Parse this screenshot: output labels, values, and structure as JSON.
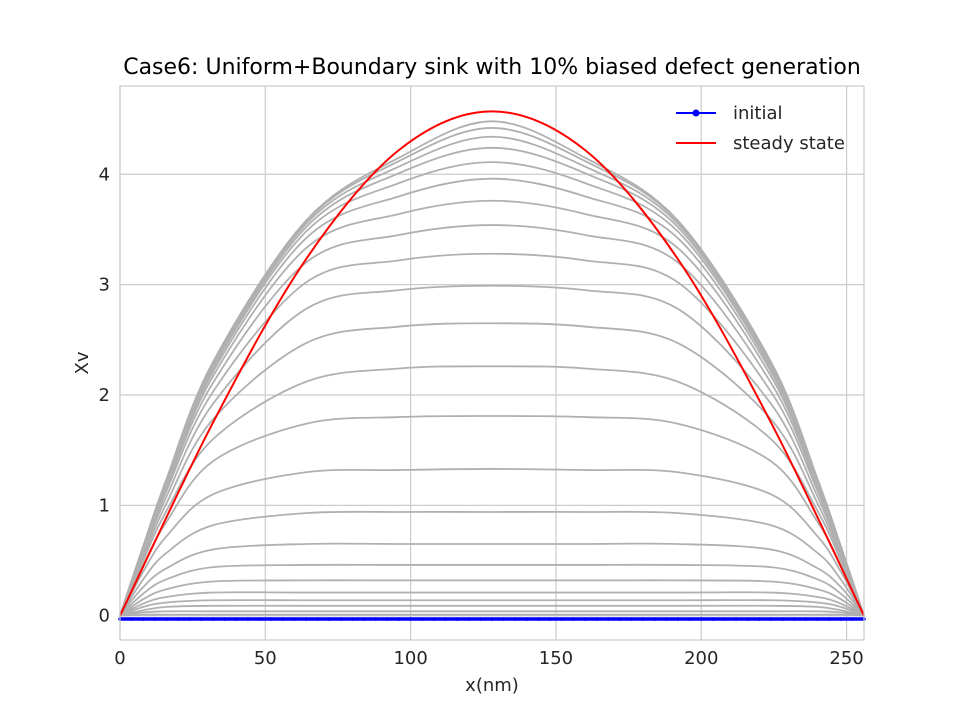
{
  "chart_data": {
    "type": "line",
    "title": "Case6: Uniform+Boundary sink with 10% biased defect generation",
    "xlabel": "x(nm)",
    "ylabel": "Xv",
    "xlim": [
      0,
      256
    ],
    "ylim": [
      -0.22,
      4.8
    ],
    "xticks": [
      0,
      50,
      100,
      150,
      200,
      250
    ],
    "yticks": [
      0,
      1,
      2,
      3,
      4
    ],
    "grid": true,
    "legend_position": "top-right",
    "colors": {
      "initial": "#0000ff",
      "steady": "#ff0000",
      "intermediate": "#b0b0b0",
      "grid": "#cccccc",
      "frame": "#cccccc"
    },
    "series": [
      {
        "name": "initial",
        "color": "#0000ff",
        "marker": "circle",
        "x": [
          0,
          256
        ],
        "y": [
          -0.03,
          -0.03
        ]
      },
      {
        "name": "steady state",
        "color": "#ff0000",
        "x": [
          0,
          32,
          64,
          96,
          128,
          160,
          192,
          224,
          256
        ],
        "y": [
          0.0,
          1.75,
          3.23,
          4.22,
          4.57,
          4.22,
          3.23,
          1.75,
          0.0
        ]
      }
    ],
    "intermediate_series": {
      "color": "#b0b0b0",
      "x": [
        0,
        8,
        16,
        32,
        64,
        96,
        128,
        160,
        192,
        224,
        240,
        248,
        256
      ],
      "curves": [
        [
          0.0,
          0.01,
          0.01,
          0.01,
          0.01,
          0.01,
          0.01,
          0.01,
          0.01,
          0.01,
          0.01,
          0.01,
          0.0
        ],
        [
          0.0,
          0.03,
          0.04,
          0.04,
          0.04,
          0.04,
          0.04,
          0.04,
          0.04,
          0.04,
          0.04,
          0.03,
          0.0
        ],
        [
          0.0,
          0.05,
          0.08,
          0.09,
          0.09,
          0.09,
          0.09,
          0.09,
          0.09,
          0.09,
          0.08,
          0.05,
          0.0
        ],
        [
          0.0,
          0.08,
          0.12,
          0.14,
          0.14,
          0.14,
          0.14,
          0.14,
          0.14,
          0.14,
          0.12,
          0.08,
          0.0
        ],
        [
          0.0,
          0.11,
          0.17,
          0.21,
          0.21,
          0.21,
          0.21,
          0.21,
          0.21,
          0.21,
          0.17,
          0.11,
          0.0
        ],
        [
          0.0,
          0.15,
          0.24,
          0.31,
          0.32,
          0.32,
          0.32,
          0.32,
          0.32,
          0.31,
          0.24,
          0.15,
          0.0
        ],
        [
          0.0,
          0.2,
          0.33,
          0.44,
          0.46,
          0.46,
          0.46,
          0.46,
          0.46,
          0.44,
          0.33,
          0.2,
          0.0
        ],
        [
          0.0,
          0.26,
          0.43,
          0.6,
          0.65,
          0.65,
          0.65,
          0.65,
          0.65,
          0.6,
          0.43,
          0.26,
          0.0
        ],
        [
          0.0,
          0.33,
          0.57,
          0.82,
          0.93,
          0.94,
          0.94,
          0.94,
          0.93,
          0.82,
          0.57,
          0.33,
          0.0
        ],
        [
          0.0,
          0.4,
          0.72,
          1.1,
          1.3,
          1.32,
          1.33,
          1.32,
          1.3,
          1.1,
          0.72,
          0.4,
          0.0
        ],
        [
          0.0,
          0.46,
          0.85,
          1.4,
          1.74,
          1.8,
          1.81,
          1.8,
          1.74,
          1.4,
          0.85,
          0.46,
          0.0
        ],
        [
          0.0,
          0.5,
          0.95,
          1.6,
          2.12,
          2.24,
          2.26,
          2.24,
          2.12,
          1.6,
          0.95,
          0.5,
          0.0
        ],
        [
          0.0,
          0.53,
          1.02,
          1.78,
          2.47,
          2.62,
          2.65,
          2.62,
          2.47,
          1.78,
          1.02,
          0.53,
          0.0
        ],
        [
          0.0,
          0.56,
          1.08,
          1.92,
          2.78,
          2.95,
          2.99,
          2.95,
          2.78,
          1.92,
          1.08,
          0.56,
          0.0
        ],
        [
          0.0,
          0.58,
          1.13,
          2.03,
          3.02,
          3.22,
          3.28,
          3.22,
          3.02,
          2.03,
          1.13,
          0.58,
          0.0
        ],
        [
          0.0,
          0.59,
          1.16,
          2.11,
          3.2,
          3.45,
          3.54,
          3.45,
          3.2,
          2.11,
          1.16,
          0.59,
          0.0
        ],
        [
          0.0,
          0.6,
          1.18,
          2.17,
          3.33,
          3.64,
          3.76,
          3.64,
          3.33,
          2.17,
          1.18,
          0.6,
          0.0
        ],
        [
          0.0,
          0.61,
          1.2,
          2.21,
          3.42,
          3.8,
          3.96,
          3.8,
          3.42,
          2.21,
          1.2,
          0.61,
          0.0
        ],
        [
          0.0,
          0.62,
          1.21,
          2.24,
          3.48,
          3.92,
          4.11,
          3.92,
          3.48,
          2.24,
          1.21,
          0.62,
          0.0
        ],
        [
          0.0,
          0.62,
          1.22,
          2.26,
          3.52,
          4.01,
          4.24,
          4.01,
          3.52,
          2.26,
          1.22,
          0.62,
          0.0
        ],
        [
          0.0,
          0.63,
          1.23,
          2.28,
          3.55,
          4.07,
          4.34,
          4.07,
          3.55,
          2.28,
          1.23,
          0.63,
          0.0
        ],
        [
          0.0,
          0.63,
          1.23,
          2.29,
          3.57,
          4.12,
          4.42,
          4.12,
          3.57,
          2.29,
          1.23,
          0.63,
          0.0
        ],
        [
          0.0,
          0.63,
          1.24,
          2.3,
          3.58,
          4.15,
          4.48,
          4.15,
          3.58,
          2.3,
          1.24,
          0.63,
          0.0
        ]
      ]
    }
  }
}
